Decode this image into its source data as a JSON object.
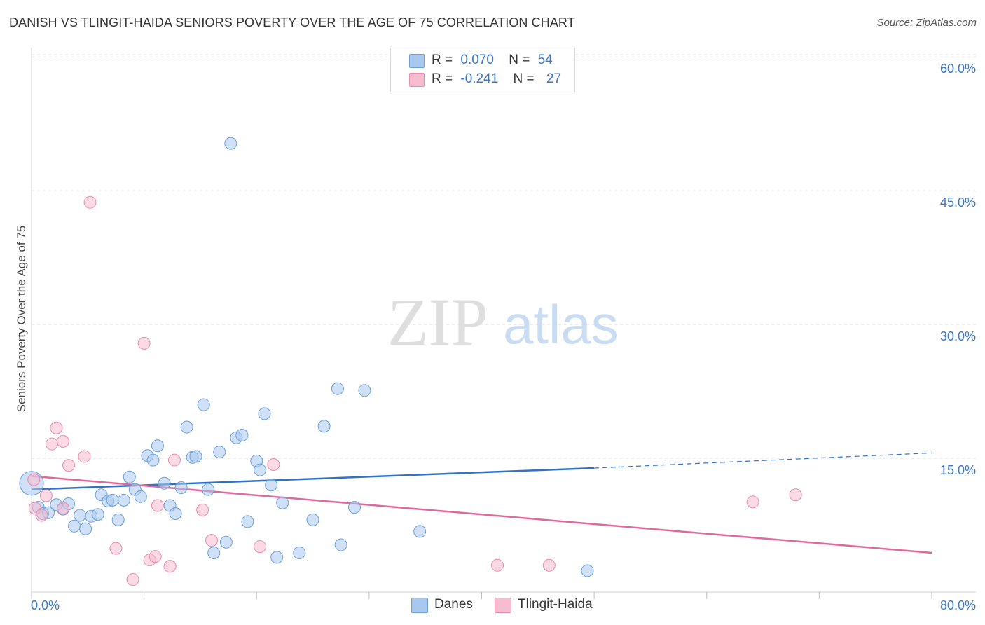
{
  "header": {
    "title": "DANISH VS TLINGIT-HAIDA SENIORS POVERTY OVER THE AGE OF 75 CORRELATION CHART",
    "source": "Source: ZipAtlas.com"
  },
  "watermark": {
    "zip": "ZIP",
    "atlas": "atlas"
  },
  "legend": {
    "rows": [
      {
        "r_label": "R =",
        "r_value": "0.070",
        "n_label": "N =",
        "n_value": "54",
        "color": "#a9c8f0"
      },
      {
        "r_label": "R =",
        "r_value": "-0.241",
        "n_label": "N =",
        "n_value": "27",
        "color": "#f7bcd0"
      }
    ]
  },
  "bottom_legend": [
    {
      "label": "Danes",
      "color": "#a9c8f0"
    },
    {
      "label": "Tlingit-Haida",
      "color": "#f7bcd0"
    }
  ],
  "colors": {
    "danes_fill": "#a9c8f0",
    "danes_stroke": "#6a9fd8",
    "danes_line": "#2f72c8",
    "tlingit_fill": "#f7bcd0",
    "tlingit_stroke": "#e98bab",
    "tlingit_line": "#e0689a",
    "tick_label": "#3a75c4",
    "grid": "#e2e2e2"
  },
  "chart_data": {
    "type": "scatter",
    "title": "DANISH VS TLINGIT-HAIDA SENIORS POVERTY OVER THE AGE OF 75 CORRELATION CHART",
    "xlabel": "",
    "ylabel": "Seniors Poverty Over the Age of 75",
    "xlim": [
      0,
      80
    ],
    "ylim": [
      0,
      62
    ],
    "x_tick_labels": [
      "0.0%",
      "80.0%"
    ],
    "y_ticks": [
      15,
      30,
      45,
      60
    ],
    "y_tick_labels": [
      "15.0%",
      "30.0%",
      "45.0%",
      "60.0%"
    ],
    "grid": "horizontal dashed",
    "legend_placement": "top-center",
    "series": [
      {
        "name": "Danes",
        "points": [
          [
            0.0,
            12.2
          ],
          [
            0.6,
            9.5
          ],
          [
            1.0,
            8.8
          ],
          [
            1.5,
            8.9
          ],
          [
            2.2,
            9.8
          ],
          [
            2.8,
            9.3
          ],
          [
            3.3,
            9.9
          ],
          [
            3.8,
            7.4
          ],
          [
            4.3,
            8.6
          ],
          [
            4.8,
            7.1
          ],
          [
            5.3,
            8.5
          ],
          [
            5.9,
            8.7
          ],
          [
            6.2,
            10.9
          ],
          [
            6.8,
            10.2
          ],
          [
            7.2,
            10.3
          ],
          [
            7.7,
            8.1
          ],
          [
            8.2,
            10.3
          ],
          [
            8.7,
            12.9
          ],
          [
            9.2,
            11.5
          ],
          [
            9.7,
            10.7
          ],
          [
            10.3,
            15.3
          ],
          [
            10.8,
            14.8
          ],
          [
            11.2,
            16.4
          ],
          [
            11.8,
            12.2
          ],
          [
            12.3,
            9.7
          ],
          [
            12.8,
            8.8
          ],
          [
            13.3,
            11.7
          ],
          [
            13.8,
            18.5
          ],
          [
            14.3,
            15.1
          ],
          [
            14.6,
            15.2
          ],
          [
            15.3,
            21.0
          ],
          [
            15.7,
            11.5
          ],
          [
            16.2,
            4.4
          ],
          [
            16.7,
            15.7
          ],
          [
            17.3,
            5.6
          ],
          [
            17.7,
            50.3
          ],
          [
            18.2,
            17.3
          ],
          [
            18.7,
            17.6
          ],
          [
            19.2,
            7.9
          ],
          [
            20.0,
            14.7
          ],
          [
            20.3,
            13.7
          ],
          [
            20.7,
            20.0
          ],
          [
            21.3,
            12.0
          ],
          [
            21.8,
            3.9
          ],
          [
            22.3,
            10.0
          ],
          [
            23.8,
            4.4
          ],
          [
            25.0,
            8.1
          ],
          [
            26.0,
            18.6
          ],
          [
            27.2,
            22.8
          ],
          [
            27.5,
            5.3
          ],
          [
            28.7,
            9.5
          ],
          [
            29.6,
            22.6
          ],
          [
            34.5,
            6.8
          ],
          [
            49.4,
            2.4
          ]
        ]
      },
      {
        "name": "Tlingit-Haida",
        "points": [
          [
            0.3,
            9.4
          ],
          [
            0.9,
            8.6
          ],
          [
            1.3,
            10.8
          ],
          [
            1.8,
            16.6
          ],
          [
            2.2,
            18.4
          ],
          [
            2.8,
            16.9
          ],
          [
            3.3,
            14.2
          ],
          [
            4.7,
            15.2
          ],
          [
            5.2,
            43.7
          ],
          [
            7.5,
            4.9
          ],
          [
            9.0,
            1.4
          ],
          [
            10.0,
            27.9
          ],
          [
            10.5,
            3.6
          ],
          [
            11.0,
            4.0
          ],
          [
            11.2,
            9.7
          ],
          [
            12.3,
            2.9
          ],
          [
            12.7,
            14.8
          ],
          [
            15.2,
            9.2
          ],
          [
            16.0,
            5.8
          ],
          [
            20.3,
            5.1
          ],
          [
            21.5,
            14.3
          ],
          [
            2.8,
            9.4
          ],
          [
            41.4,
            3.0
          ],
          [
            46.0,
            3.0
          ],
          [
            64.1,
            10.1
          ],
          [
            67.9,
            10.9
          ],
          [
            0.2,
            12.6
          ]
        ]
      }
    ],
    "trend_lines": [
      {
        "name": "Danes",
        "from": [
          0,
          11.5
        ],
        "to": [
          50,
          13.9
        ],
        "dashed_to": [
          80,
          15.6
        ]
      },
      {
        "name": "Tlingit-Haida",
        "from": [
          0,
          13.0
        ],
        "to": [
          80,
          4.4
        ]
      }
    ]
  }
}
